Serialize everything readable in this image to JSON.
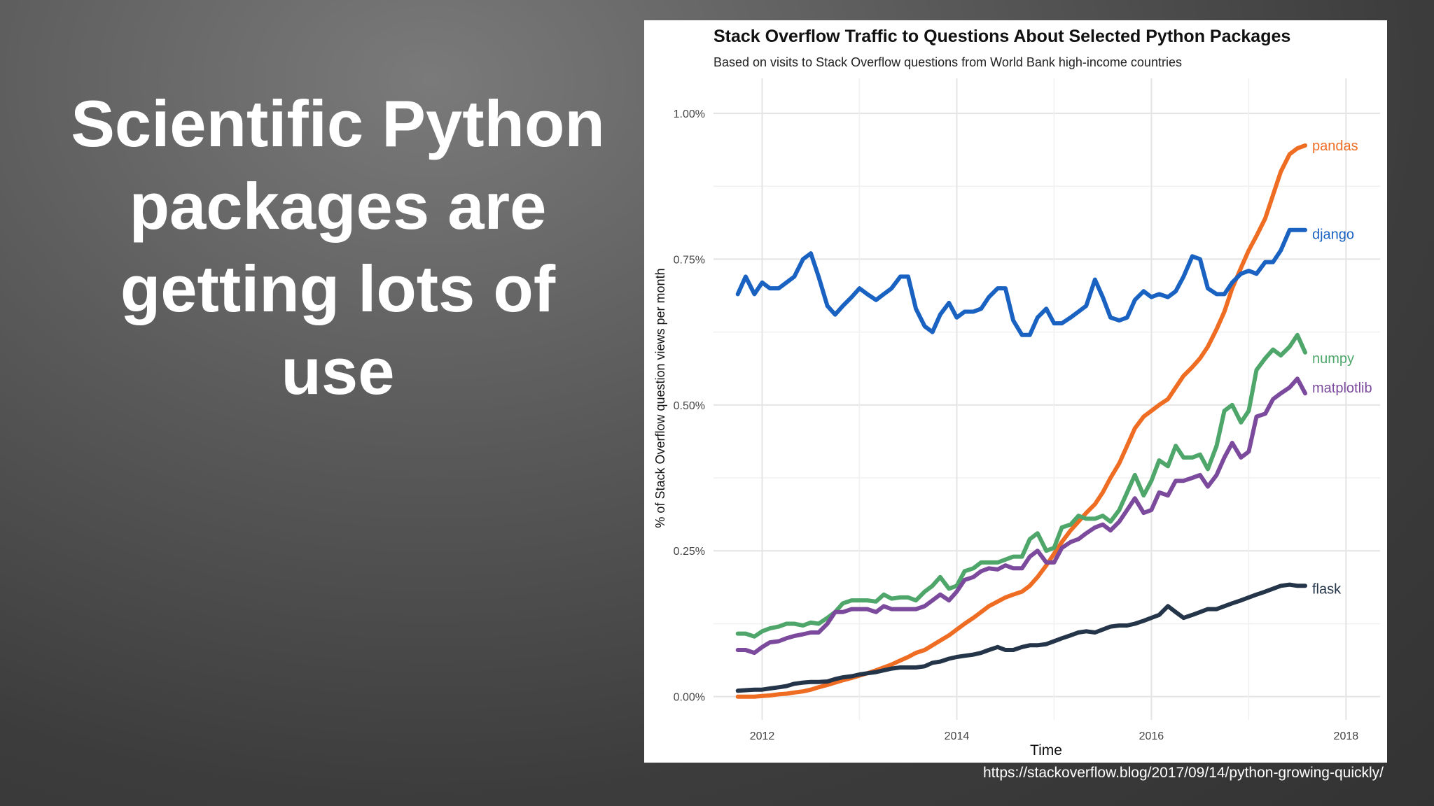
{
  "slide": {
    "title": "Scientific Python packages are getting lots of use",
    "source": "https://stackoverflow.blog/2017/09/14/python-growing-quickly/"
  },
  "chart_data": {
    "type": "line",
    "title": "Stack Overflow Traffic to Questions About Selected Python Packages",
    "subtitle": "Based on visits to Stack Overflow questions from World Bank high-income countries",
    "xlabel": "Time",
    "ylabel": "% of Stack Overflow question views per month",
    "xlim": [
      2011.5,
      2018.35
    ],
    "ylim": [
      -0.04,
      1.06
    ],
    "xticks": [
      2012,
      2014,
      2016,
      2018
    ],
    "xtick_labels": [
      "2012",
      "2014",
      "2016",
      "2018"
    ],
    "yticks": [
      0,
      0.25,
      0.5,
      0.75,
      1.0
    ],
    "ytick_labels": [
      "0.00%",
      "0.25%",
      "0.50%",
      "0.75%",
      "1.00%"
    ],
    "grid": true,
    "legend": "direct labels at line ends",
    "x": [
      2011.75,
      2011.83,
      2011.92,
      2012.0,
      2012.08,
      2012.17,
      2012.25,
      2012.33,
      2012.42,
      2012.5,
      2012.58,
      2012.67,
      2012.75,
      2012.83,
      2012.92,
      2013.0,
      2013.08,
      2013.17,
      2013.25,
      2013.33,
      2013.42,
      2013.5,
      2013.58,
      2013.67,
      2013.75,
      2013.83,
      2013.92,
      2014.0,
      2014.08,
      2014.17,
      2014.25,
      2014.33,
      2014.42,
      2014.5,
      2014.58,
      2014.67,
      2014.75,
      2014.83,
      2014.92,
      2015.0,
      2015.08,
      2015.17,
      2015.25,
      2015.33,
      2015.42,
      2015.5,
      2015.58,
      2015.67,
      2015.75,
      2015.83,
      2015.92,
      2016.0,
      2016.08,
      2016.17,
      2016.25,
      2016.33,
      2016.42,
      2016.5,
      2016.58,
      2016.67,
      2016.75,
      2016.83,
      2016.92,
      2017.0,
      2017.08,
      2017.17,
      2017.25,
      2017.33,
      2017.42,
      2017.5,
      2017.58
    ],
    "series": [
      {
        "name": "pandas",
        "color": "#ef6c23",
        "values": [
          0.0,
          0.0,
          0.0,
          0.001,
          0.002,
          0.004,
          0.005,
          0.007,
          0.009,
          0.012,
          0.016,
          0.02,
          0.024,
          0.028,
          0.032,
          0.036,
          0.04,
          0.045,
          0.05,
          0.055,
          0.062,
          0.068,
          0.075,
          0.08,
          0.088,
          0.096,
          0.105,
          0.115,
          0.125,
          0.135,
          0.145,
          0.155,
          0.163,
          0.17,
          0.175,
          0.18,
          0.19,
          0.205,
          0.225,
          0.245,
          0.265,
          0.285,
          0.3,
          0.315,
          0.33,
          0.35,
          0.375,
          0.4,
          0.43,
          0.46,
          0.48,
          0.49,
          0.5,
          0.51,
          0.53,
          0.55,
          0.565,
          0.58,
          0.6,
          0.63,
          0.66,
          0.7,
          0.735,
          0.765,
          0.79,
          0.82,
          0.86,
          0.9,
          0.93,
          0.94,
          0.945
        ]
      },
      {
        "name": "django",
        "color": "#1a62c2",
        "values": [
          0.69,
          0.72,
          0.69,
          0.71,
          0.7,
          0.7,
          0.71,
          0.72,
          0.75,
          0.76,
          0.72,
          0.67,
          0.655,
          0.67,
          0.685,
          0.7,
          0.69,
          0.68,
          0.69,
          0.7,
          0.72,
          0.72,
          0.665,
          0.635,
          0.625,
          0.655,
          0.675,
          0.65,
          0.66,
          0.66,
          0.665,
          0.685,
          0.7,
          0.7,
          0.645,
          0.62,
          0.62,
          0.65,
          0.665,
          0.64,
          0.64,
          0.65,
          0.66,
          0.67,
          0.715,
          0.685,
          0.65,
          0.645,
          0.65,
          0.68,
          0.695,
          0.685,
          0.69,
          0.685,
          0.695,
          0.72,
          0.755,
          0.75,
          0.7,
          0.69,
          0.69,
          0.71,
          0.725,
          0.73,
          0.725,
          0.745,
          0.745,
          0.765,
          0.8,
          0.8,
          0.8
        ]
      },
      {
        "name": "numpy",
        "color": "#4ea66a",
        "values": [
          0.108,
          0.108,
          0.103,
          0.112,
          0.117,
          0.12,
          0.125,
          0.125,
          0.122,
          0.127,
          0.125,
          0.135,
          0.145,
          0.16,
          0.165,
          0.165,
          0.165,
          0.163,
          0.175,
          0.168,
          0.17,
          0.17,
          0.165,
          0.18,
          0.19,
          0.205,
          0.185,
          0.19,
          0.215,
          0.22,
          0.23,
          0.23,
          0.23,
          0.235,
          0.24,
          0.24,
          0.27,
          0.28,
          0.25,
          0.255,
          0.29,
          0.295,
          0.31,
          0.305,
          0.305,
          0.31,
          0.3,
          0.32,
          0.35,
          0.38,
          0.345,
          0.37,
          0.405,
          0.395,
          0.43,
          0.41,
          0.41,
          0.415,
          0.39,
          0.43,
          0.49,
          0.5,
          0.47,
          0.49,
          0.56,
          0.58,
          0.595,
          0.585,
          0.6,
          0.62,
          0.59
        ]
      },
      {
        "name": "matplotlib",
        "color": "#7b4a9d",
        "values": [
          0.08,
          0.08,
          0.075,
          0.085,
          0.093,
          0.095,
          0.1,
          0.104,
          0.107,
          0.11,
          0.11,
          0.125,
          0.145,
          0.145,
          0.15,
          0.15,
          0.15,
          0.145,
          0.155,
          0.15,
          0.15,
          0.15,
          0.15,
          0.155,
          0.165,
          0.175,
          0.165,
          0.18,
          0.2,
          0.205,
          0.215,
          0.22,
          0.218,
          0.225,
          0.22,
          0.22,
          0.24,
          0.25,
          0.23,
          0.23,
          0.255,
          0.265,
          0.27,
          0.28,
          0.29,
          0.295,
          0.285,
          0.3,
          0.32,
          0.34,
          0.315,
          0.32,
          0.35,
          0.345,
          0.37,
          0.37,
          0.375,
          0.38,
          0.36,
          0.38,
          0.41,
          0.435,
          0.41,
          0.42,
          0.48,
          0.485,
          0.51,
          0.52,
          0.53,
          0.545,
          0.52
        ]
      },
      {
        "name": "flask",
        "color": "#243449",
        "values": [
          0.01,
          0.011,
          0.012,
          0.012,
          0.014,
          0.016,
          0.018,
          0.022,
          0.024,
          0.025,
          0.025,
          0.026,
          0.03,
          0.033,
          0.035,
          0.038,
          0.04,
          0.042,
          0.045,
          0.048,
          0.05,
          0.05,
          0.05,
          0.052,
          0.058,
          0.06,
          0.065,
          0.068,
          0.07,
          0.072,
          0.075,
          0.08,
          0.085,
          0.08,
          0.08,
          0.085,
          0.088,
          0.088,
          0.09,
          0.095,
          0.1,
          0.105,
          0.11,
          0.112,
          0.11,
          0.115,
          0.12,
          0.122,
          0.122,
          0.125,
          0.13,
          0.135,
          0.14,
          0.155,
          0.145,
          0.135,
          0.14,
          0.145,
          0.15,
          0.15,
          0.155,
          0.16,
          0.165,
          0.17,
          0.175,
          0.18,
          0.185,
          0.19,
          0.192,
          0.19,
          0.19
        ]
      }
    ]
  }
}
